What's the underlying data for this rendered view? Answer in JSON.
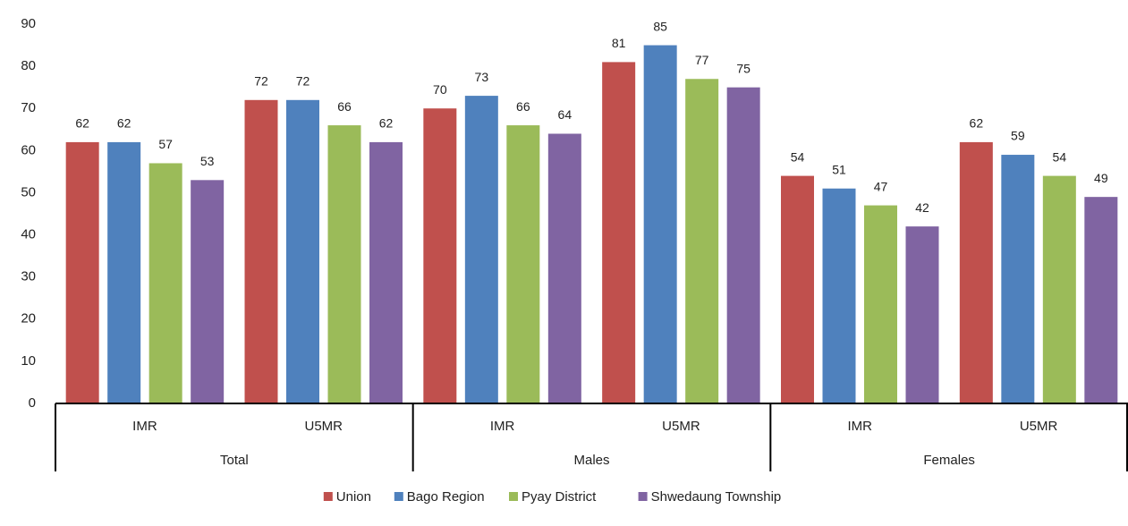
{
  "chart_data": {
    "type": "bar",
    "categories": [
      "IMR",
      "U5MR",
      "IMR",
      "U5MR",
      "IMR",
      "U5MR"
    ],
    "groups": [
      "Total",
      "Males",
      "Females"
    ],
    "series": [
      {
        "name": "Union",
        "color": "#c0504d",
        "values": [
          62,
          72,
          70,
          81,
          54,
          62
        ]
      },
      {
        "name": "Bago Region",
        "color": "#4f81bd",
        "values": [
          62,
          72,
          73,
          85,
          51,
          59
        ]
      },
      {
        "name": "Pyay District",
        "color": "#9bbb59",
        "values": [
          57,
          66,
          66,
          77,
          47,
          54
        ]
      },
      {
        "name": "Shwedaung Township",
        "color": "#8064a2",
        "values": [
          53,
          62,
          64,
          75,
          42,
          49
        ]
      }
    ],
    "ylim": [
      0,
      90
    ],
    "yticks": [
      0,
      10,
      20,
      30,
      40,
      50,
      60,
      70,
      80,
      90
    ],
    "grid": false,
    "legend": "bottom"
  }
}
